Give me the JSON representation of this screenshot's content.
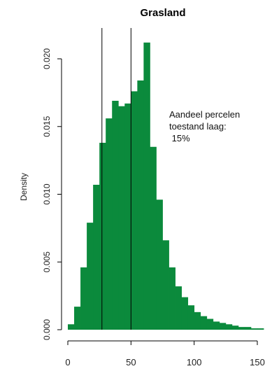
{
  "chart_data": {
    "type": "bar",
    "title": "Grasland",
    "xlabel": "",
    "ylabel": "Density",
    "bin_width": 5,
    "x": [
      0,
      5,
      10,
      15,
      20,
      25,
      30,
      35,
      40,
      45,
      50,
      55,
      60,
      65,
      70,
      75,
      80,
      85,
      90,
      95,
      100,
      105,
      110,
      115,
      120,
      125,
      130,
      135,
      140,
      145,
      150
    ],
    "values": [
      0.0004,
      0.0017,
      0.0046,
      0.0079,
      0.0107,
      0.0138,
      0.0156,
      0.0169,
      0.0165,
      0.0167,
      0.0176,
      0.0184,
      0.0212,
      0.0135,
      0.0096,
      0.0066,
      0.0046,
      0.0032,
      0.0024,
      0.0018,
      0.0013,
      0.001,
      0.0008,
      0.0006,
      0.0005,
      0.0004,
      0.0003,
      0.0002,
      0.0002,
      0.0001,
      0.0001
    ],
    "xlim": [
      0,
      150
    ],
    "ylim": [
      0,
      0.021
    ],
    "x_ticks": [
      "0",
      "50",
      "100",
      "150"
    ],
    "y_ticks": [
      "0.000",
      "0.005",
      "0.010",
      "0.015",
      "0.020"
    ],
    "vlines": [
      27,
      50
    ],
    "bar_color": "#0b8a3c",
    "annotation": [
      "Aandeel percelen",
      "toestand laag:",
      " 15%"
    ],
    "grid": false
  }
}
